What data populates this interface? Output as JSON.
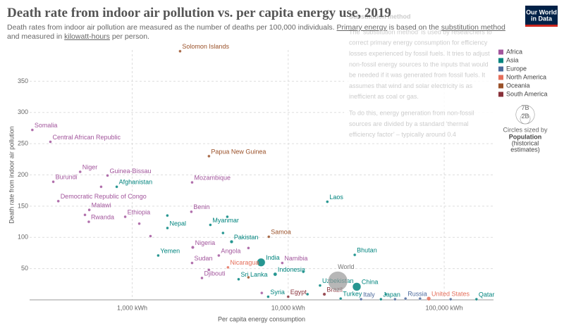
{
  "chart_data": {
    "type": "scatter",
    "title": "Death rate from indoor air pollution vs. per capita energy use, 2019",
    "subtitle": [
      "Death rates from indoor air pollution are measured as the number of deaths per 100,000 individuals. ",
      "Primary energy",
      " is based on the ",
      "substitution method",
      " and measured in ",
      "kilowatt-hours",
      " per person."
    ],
    "x_label": "Per capita energy consumption",
    "y_label": "Death rate from indoor air pollution",
    "log_x": true,
    "grid": true,
    "xlim": [
      220,
      207000
    ],
    "ylim": [
      0,
      400
    ],
    "xticks": [
      {
        "value": 1000,
        "label": "1,000 kWh"
      },
      {
        "value": 10000,
        "label": "10,000 kWh"
      },
      {
        "value": 100000,
        "label": "100,000 kWh"
      }
    ],
    "yticks": [
      50,
      100,
      150,
      200,
      250,
      300,
      350
    ],
    "series": [
      {
        "name": "Africa",
        "color": "#a2559c",
        "labels": [
          "Somalia",
          "Central African Republic",
          "Niger",
          "Burundi",
          "Guinea-Bissau",
          "Democratic Republic of Congo",
          "Malawi",
          "Ethiopia",
          "Rwanda",
          "Mozambique",
          "Benin",
          "Nigeria",
          "Angola",
          "Namibia",
          "Sudan",
          "Djibouti",
          null,
          null,
          null,
          null,
          null,
          null,
          null
        ],
        "x": [
          229,
          299,
          464,
          312,
          695,
          336,
          531,
          902,
          527,
          2421,
          2394,
          2445,
          3590,
          9160,
          2420,
          2800,
          632,
          498,
          1110,
          1310,
          3100,
          5560,
          6770
        ],
        "values": [
          272,
          253,
          205,
          189,
          199,
          158,
          144,
          133,
          125,
          188,
          141,
          84,
          71,
          59,
          59,
          35,
          181,
          136,
          122,
          102,
          48,
          83,
          11
        ],
        "sizes": [
          0.016,
          0.005,
          0.023,
          0.012,
          0.002,
          0.087,
          0.019,
          0.112,
          0.013,
          0.03,
          0.012,
          0.2,
          0.032,
          0.0025,
          0.043,
          0.001,
          0.02,
          0.01,
          0.01,
          0.01,
          0.01,
          0.01,
          0.01
        ]
      },
      {
        "name": "Asia",
        "color": "#00847e",
        "labels": [
          "Afghanistan",
          "Nepal",
          "Myanmar",
          "Pakistan",
          "Laos",
          "Bhutan",
          "Yemen",
          "India",
          "Indonesia",
          "Sri Lanka",
          "Uzbekistan",
          "China",
          "Syria",
          "Turkey",
          "Japan",
          "Qatar",
          null,
          null,
          null,
          null,
          null,
          null
        ],
        "x": [
          796,
          1682,
          3170,
          4335,
          17820,
          26700,
          1468,
          6700,
          8250,
          4810,
          16000,
          27500,
          7440,
          21700,
          39300,
          161000,
          1680,
          4070,
          3820,
          12500,
          13300,
          42200
        ],
        "values": [
          181,
          115,
          120,
          93,
          157,
          72,
          71,
          60,
          41,
          33,
          23,
          21,
          5,
          2,
          1,
          1,
          135,
          133,
          107,
          45,
          9,
          9
        ],
        "sizes": [
          0.038,
          0.029,
          0.054,
          0.22,
          0.007,
          0.0008,
          0.03,
          1.37,
          0.27,
          0.021,
          0.033,
          1.4,
          0.017,
          0.083,
          0.126,
          0.0028,
          0.01,
          0.01,
          0.01,
          0.01,
          0.01,
          0.01
        ]
      },
      {
        "name": "Europe",
        "color": "#4c6a9c",
        "labels": [
          "Italy",
          "Russia",
          null,
          null,
          null
        ],
        "x": [
          29300,
          56500,
          48400,
          110000,
          70000
        ],
        "values": [
          1,
          2,
          1,
          1,
          2
        ],
        "sizes": [
          0.06,
          0.145,
          0.01,
          0.01,
          0.01
        ]
      },
      {
        "name": "North America",
        "color": "#e56e5a",
        "labels": [
          "Nicaragua",
          "United States"
        ],
        "x": [
          4110,
          79600
        ],
        "values": [
          52,
          2
        ],
        "sizes": [
          0.0065,
          0.33
        ]
      },
      {
        "name": "Oceania",
        "color": "#9a5129",
        "labels": [
          "Solomon Islands",
          "Papua New Guinea",
          "Samoa",
          null
        ],
        "x": [
          2027,
          3104,
          7510,
          5560
        ],
        "values": [
          398,
          230,
          101,
          36
        ],
        "sizes": [
          0.0007,
          0.009,
          0.0002,
          0.001
        ]
      },
      {
        "name": "South America",
        "color": "#883039",
        "labels": [
          "Brazil",
          "Egypt"
        ],
        "x": [
          17050,
          10000
        ],
        "values": [
          9,
          5
        ],
        "sizes": [
          0.21,
          0.1
        ]
      }
    ],
    "world": {
      "label": "World",
      "color": "#999999",
      "x": 20800,
      "value": 30,
      "size": 7.7
    },
    "size_legend": {
      "title": "Circles sized by",
      "subtitle": [
        "Population",
        "(historical",
        "estimates)"
      ],
      "sizes": [
        {
          "value": 7,
          "label": "7B"
        },
        {
          "value": 2,
          "label": "2B"
        }
      ]
    },
    "tooltip": {
      "title": "Substitution method",
      "paragraphs": [
        [
          "The ‘substitution method’ is used by researchers to",
          "correct primary energy consumption for efficiency",
          "losses experienced by fossil fuels. It tries to adjust",
          "non-fossil energy sources to the inputs that would",
          "be needed if it was generated from fossil fuels. It",
          "assumes that wind and solar electricity is as",
          "inefficient as coal or gas."
        ],
        [
          "To do this, energy generation from non-fossil",
          "sources are divided by a standard ‘thermal",
          "efficiency factor’ – typically around 0.4"
        ]
      ]
    },
    "logo": [
      "Our World",
      "in Data"
    ]
  }
}
